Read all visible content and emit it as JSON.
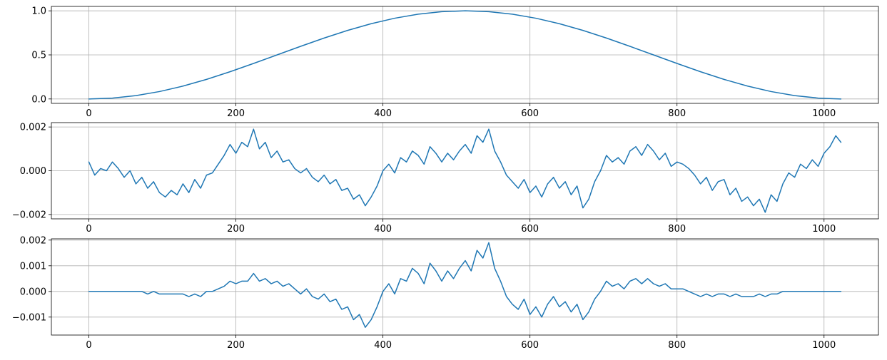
{
  "chart_data": [
    {
      "type": "line",
      "title": "",
      "xlabel": "",
      "ylabel": "",
      "xlim": [
        -51,
        1074
      ],
      "ylim": [
        -0.05,
        1.05
      ],
      "xticks": [
        0,
        200,
        400,
        600,
        800,
        1000
      ],
      "xtick_labels": [
        "0",
        "200",
        "400",
        "600",
        "800",
        "1000"
      ],
      "yticks": [
        0.0,
        0.5,
        1.0
      ],
      "ytick_labels": [
        "0.0",
        "0.5",
        "1.0"
      ],
      "grid": true,
      "color": "#1f77b4",
      "series": [
        {
          "x": [
            0,
            32,
            64,
            96,
            128,
            160,
            192,
            224,
            256,
            288,
            320,
            352,
            384,
            416,
            448,
            480,
            512,
            544,
            576,
            608,
            640,
            672,
            704,
            736,
            768,
            800,
            832,
            864,
            896,
            928,
            960,
            992,
            1023
          ],
          "values": [
            0.0,
            0.01,
            0.038,
            0.084,
            0.146,
            0.222,
            0.309,
            0.403,
            0.5,
            0.597,
            0.691,
            0.778,
            0.854,
            0.916,
            0.962,
            0.99,
            1.0,
            0.99,
            0.962,
            0.916,
            0.854,
            0.778,
            0.691,
            0.597,
            0.5,
            0.403,
            0.309,
            0.222,
            0.146,
            0.084,
            0.038,
            0.01,
            0.0
          ]
        }
      ]
    },
    {
      "type": "line",
      "title": "",
      "xlabel": "",
      "ylabel": "",
      "xlim": [
        -51,
        1074
      ],
      "ylim": [
        -0.0022,
        0.0022
      ],
      "xticks": [
        0,
        200,
        400,
        600,
        800,
        1000
      ],
      "xtick_labels": [
        "0",
        "200",
        "400",
        "600",
        "800",
        "1000"
      ],
      "yticks": [
        -0.002,
        0.0,
        0.002
      ],
      "ytick_labels": [
        "−0.002",
        "0.000",
        "0.002"
      ],
      "grid": true,
      "color": "#1f77b4",
      "series": [
        {
          "x": [
            0,
            8,
            16,
            24,
            32,
            40,
            48,
            56,
            64,
            72,
            80,
            88,
            96,
            104,
            112,
            120,
            128,
            136,
            144,
            152,
            160,
            168,
            176,
            184,
            192,
            200,
            208,
            216,
            224,
            232,
            240,
            248,
            256,
            264,
            272,
            280,
            288,
            296,
            304,
            312,
            320,
            328,
            336,
            344,
            352,
            360,
            368,
            376,
            384,
            392,
            400,
            408,
            416,
            424,
            432,
            440,
            448,
            456,
            464,
            472,
            480,
            488,
            496,
            504,
            512,
            520,
            528,
            536,
            544,
            552,
            560,
            568,
            576,
            584,
            592,
            600,
            608,
            616,
            624,
            632,
            640,
            648,
            656,
            664,
            672,
            680,
            688,
            696,
            704,
            712,
            720,
            728,
            736,
            744,
            752,
            760,
            768,
            776,
            784,
            792,
            800,
            808,
            816,
            824,
            832,
            840,
            848,
            856,
            864,
            872,
            880,
            888,
            896,
            904,
            912,
            920,
            928,
            936,
            944,
            952,
            960,
            968,
            976,
            984,
            992,
            1000,
            1008,
            1016,
            1023
          ],
          "values": [
            0.0004,
            -0.0002,
            0.0001,
            0.0,
            0.0004,
            0.0001,
            -0.0003,
            0.0,
            -0.0006,
            -0.0003,
            -0.0008,
            -0.0005,
            -0.001,
            -0.0012,
            -0.0009,
            -0.0011,
            -0.0006,
            -0.001,
            -0.0004,
            -0.0008,
            -0.0002,
            -0.0001,
            0.0003,
            0.0007,
            0.0012,
            0.0008,
            0.0013,
            0.0011,
            0.0019,
            0.001,
            0.0013,
            0.0006,
            0.0009,
            0.0004,
            0.0005,
            0.0001,
            -0.0001,
            0.0001,
            -0.0003,
            -0.0005,
            -0.0002,
            -0.0006,
            -0.0004,
            -0.0009,
            -0.0008,
            -0.0013,
            -0.0011,
            -0.0016,
            -0.0012,
            -0.0007,
            0.0,
            0.0003,
            -0.0001,
            0.0006,
            0.0004,
            0.0009,
            0.0007,
            0.0003,
            0.0011,
            0.0008,
            0.0004,
            0.0008,
            0.0005,
            0.0009,
            0.0012,
            0.0008,
            0.0016,
            0.0013,
            0.0019,
            0.0009,
            0.0004,
            -0.0002,
            -0.0005,
            -0.0008,
            -0.0004,
            -0.001,
            -0.0007,
            -0.0012,
            -0.0006,
            -0.0003,
            -0.0008,
            -0.0005,
            -0.0011,
            -0.0007,
            -0.0017,
            -0.0013,
            -0.0005,
            0.0,
            0.0007,
            0.0004,
            0.0006,
            0.0003,
            0.0009,
            0.0011,
            0.0007,
            0.0012,
            0.0009,
            0.0005,
            0.0008,
            0.0002,
            0.0004,
            0.0003,
            0.0001,
            -0.0002,
            -0.0006,
            -0.0003,
            -0.0009,
            -0.0005,
            -0.0004,
            -0.0011,
            -0.0008,
            -0.0014,
            -0.0012,
            -0.0016,
            -0.0013,
            -0.0019,
            -0.0011,
            -0.0014,
            -0.0006,
            -0.0001,
            -0.0003,
            0.0003,
            0.0001,
            0.0005,
            0.0002,
            0.0008,
            0.0011,
            0.0016,
            0.0013
          ]
        }
      ]
    },
    {
      "type": "line",
      "title": "",
      "xlabel": "",
      "ylabel": "",
      "xlim": [
        -51,
        1074
      ],
      "ylim": [
        -0.0017,
        0.00205
      ],
      "xticks": [
        0,
        200,
        400,
        600,
        800,
        1000
      ],
      "xtick_labels": [
        "0",
        "200",
        "400",
        "600",
        "800",
        "1000"
      ],
      "yticks": [
        -0.001,
        0.0,
        0.001,
        0.002
      ],
      "ytick_labels": [
        "−0.001",
        "0.000",
        "0.001",
        "0.002"
      ],
      "grid": true,
      "color": "#1f77b4",
      "series": [
        {
          "x": [
            0,
            8,
            16,
            24,
            32,
            40,
            48,
            56,
            64,
            72,
            80,
            88,
            96,
            104,
            112,
            120,
            128,
            136,
            144,
            152,
            160,
            168,
            176,
            184,
            192,
            200,
            208,
            216,
            224,
            232,
            240,
            248,
            256,
            264,
            272,
            280,
            288,
            296,
            304,
            312,
            320,
            328,
            336,
            344,
            352,
            360,
            368,
            376,
            384,
            392,
            400,
            408,
            416,
            424,
            432,
            440,
            448,
            456,
            464,
            472,
            480,
            488,
            496,
            504,
            512,
            520,
            528,
            536,
            544,
            552,
            560,
            568,
            576,
            584,
            592,
            600,
            608,
            616,
            624,
            632,
            640,
            648,
            656,
            664,
            672,
            680,
            688,
            696,
            704,
            712,
            720,
            728,
            736,
            744,
            752,
            760,
            768,
            776,
            784,
            792,
            800,
            808,
            816,
            824,
            832,
            840,
            848,
            856,
            864,
            872,
            880,
            888,
            896,
            904,
            912,
            920,
            928,
            936,
            944,
            952,
            960,
            968,
            976,
            984,
            992,
            1000,
            1008,
            1016,
            1023
          ],
          "values": [
            0.0,
            0.0,
            0.0,
            0.0,
            0.0,
            0.0,
            0.0,
            0.0,
            0.0,
            0.0,
            -0.0001,
            0.0,
            -0.0001,
            -0.0001,
            -0.0001,
            -0.0001,
            -0.0001,
            -0.0002,
            -0.0001,
            -0.0002,
            0.0,
            0.0,
            0.0001,
            0.0002,
            0.0004,
            0.0003,
            0.0004,
            0.0004,
            0.0007,
            0.0004,
            0.0005,
            0.0003,
            0.0004,
            0.0002,
            0.0003,
            0.0001,
            -0.0001,
            0.0001,
            -0.0002,
            -0.0003,
            -0.0001,
            -0.0004,
            -0.0003,
            -0.0007,
            -0.0006,
            -0.0011,
            -0.0009,
            -0.0014,
            -0.0011,
            -0.0006,
            0.0,
            0.0003,
            -0.0001,
            0.0005,
            0.0004,
            0.0009,
            0.0007,
            0.0003,
            0.0011,
            0.0008,
            0.0004,
            0.0008,
            0.0005,
            0.0009,
            0.0012,
            0.0008,
            0.0016,
            0.0013,
            0.0019,
            0.0009,
            0.0004,
            -0.0002,
            -0.0005,
            -0.0007,
            -0.0003,
            -0.0009,
            -0.0006,
            -0.001,
            -0.0005,
            -0.0002,
            -0.0006,
            -0.0004,
            -0.0008,
            -0.0005,
            -0.0011,
            -0.0008,
            -0.0003,
            0.0,
            0.0004,
            0.0002,
            0.0003,
            0.0001,
            0.0004,
            0.0005,
            0.0003,
            0.0005,
            0.0003,
            0.0002,
            0.0003,
            0.0001,
            0.0001,
            0.0001,
            0.0,
            -0.0001,
            -0.0002,
            -0.0001,
            -0.0002,
            -0.0001,
            -0.0001,
            -0.0002,
            -0.0001,
            -0.0002,
            -0.0002,
            -0.0002,
            -0.0001,
            -0.0002,
            -0.0001,
            -0.0001,
            0.0,
            0.0,
            0.0,
            0.0,
            0.0,
            0.0,
            0.0,
            0.0,
            0.0,
            0.0,
            0.0
          ]
        }
      ]
    }
  ]
}
